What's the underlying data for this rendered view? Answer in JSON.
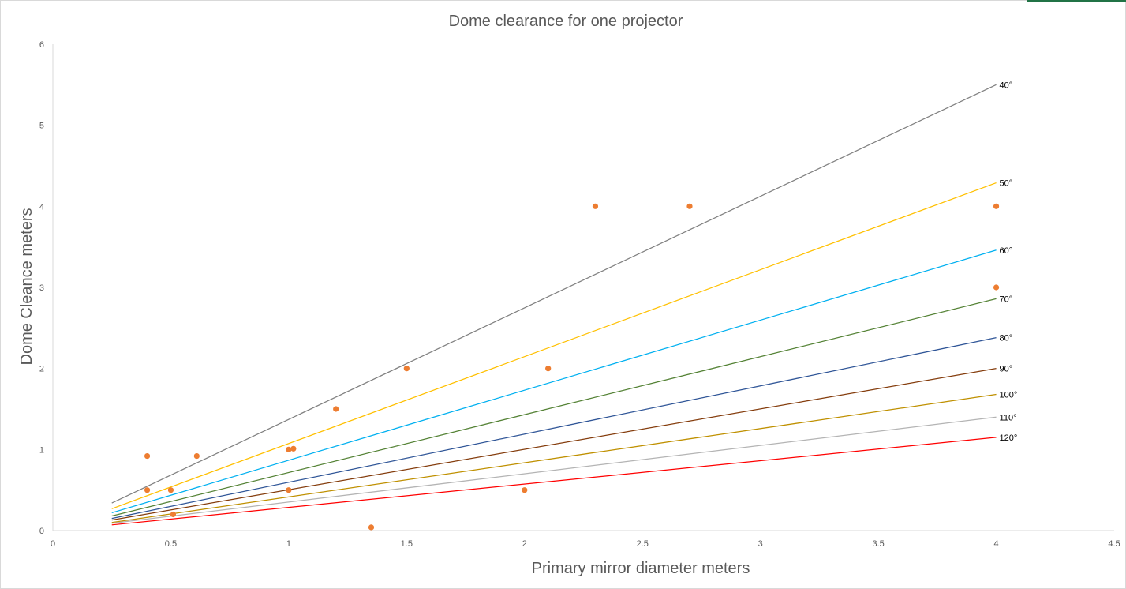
{
  "chart_data": {
    "type": "scatter",
    "title": "Dome clearance for one projector",
    "xlabel": "Primary mirror diameter meters",
    "ylabel": "Dome Cleance meters",
    "xlim": [
      0,
      4.5
    ],
    "ylim": [
      0,
      6
    ],
    "x_ticks": [
      "0",
      "0.5",
      "1",
      "1.5",
      "2",
      "2.5",
      "3",
      "3.5",
      "4",
      "4.5"
    ],
    "y_ticks": [
      "0",
      "1",
      "2",
      "3",
      "4",
      "5",
      "6"
    ],
    "grid": false,
    "legend": "none",
    "series": [
      {
        "name": "40°",
        "type": "line",
        "color": "#808080",
        "x": [
          0.25,
          4
        ],
        "y": [
          0.34,
          5.5
        ]
      },
      {
        "name": "50°",
        "type": "line",
        "color": "#ffc000",
        "x": [
          0.25,
          4
        ],
        "y": [
          0.27,
          4.29
        ]
      },
      {
        "name": "60°",
        "type": "line",
        "color": "#00b0f0",
        "x": [
          0.25,
          4
        ],
        "y": [
          0.22,
          3.46
        ]
      },
      {
        "name": "70°",
        "type": "line",
        "color": "#548235",
        "x": [
          0.25,
          4
        ],
        "y": [
          0.18,
          2.86
        ]
      },
      {
        "name": "80°",
        "type": "line",
        "color": "#2f5597",
        "x": [
          0.25,
          4
        ],
        "y": [
          0.15,
          2.38
        ]
      },
      {
        "name": "90°",
        "type": "line",
        "color": "#843c0c",
        "x": [
          0.25,
          4
        ],
        "y": [
          0.13,
          2.0
        ]
      },
      {
        "name": "100°",
        "type": "line",
        "color": "#bf9000",
        "x": [
          0.25,
          4
        ],
        "y": [
          0.1,
          1.68
        ]
      },
      {
        "name": "110°",
        "type": "line",
        "color": "#b4b4b4",
        "x": [
          0.25,
          4
        ],
        "y": [
          0.09,
          1.4
        ]
      },
      {
        "name": "120°",
        "type": "line",
        "color": "#ff0000",
        "x": [
          0.25,
          4
        ],
        "y": [
          0.07,
          1.15
        ]
      },
      {
        "type": "points",
        "color": "#ed7d31",
        "x": [
          0.4,
          0.4,
          0.5,
          0.51,
          0.61,
          1.0,
          1.0,
          1.02,
          1.2,
          1.35,
          1.5,
          2.0,
          2.1,
          2.3,
          2.7,
          4.0,
          4.0
        ],
        "y": [
          0.92,
          0.5,
          0.5,
          0.2,
          0.92,
          0.5,
          1.0,
          1.01,
          1.5,
          0.04,
          2.0,
          0.5,
          2.0,
          4.0,
          4.0,
          4.0,
          3.0
        ]
      }
    ]
  }
}
